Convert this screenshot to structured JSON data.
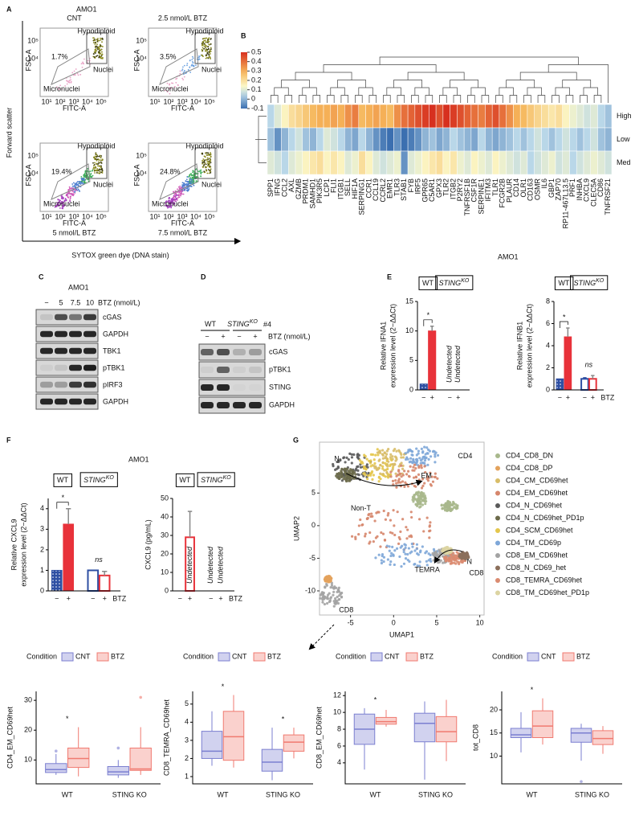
{
  "panel_a": {
    "label": "A",
    "title": "AMO1",
    "y_axis": "Forward scatter",
    "x_axis": "SYTOX green dye (DNA stain)",
    "x_ticks": [
      "10¹",
      "10²",
      "10³",
      "10⁴",
      "10⁵"
    ],
    "y_ticks": [
      "10⁴",
      "10⁵"
    ],
    "x_label": "FITC-A",
    "y_label": "FSC-A",
    "gates": [
      "Hypodiploid",
      "Nuclei",
      "Micronuclei"
    ],
    "plots": [
      {
        "condition": "CNT",
        "percent": "1.7%"
      },
      {
        "condition": "2.5 nmol/L BTZ",
        "percent": "3.5%"
      },
      {
        "condition": "5 nmol/L BTZ",
        "percent": "19.4%"
      },
      {
        "condition": "7.5 nmol/L BTZ",
        "percent": "24.8%"
      }
    ]
  },
  "panel_b": {
    "label": "B"
  },
  "panel_c": {
    "label": "C",
    "title": "AMO1",
    "doses": [
      "−",
      "5",
      "7.5",
      "10"
    ],
    "dose_label": "BTZ (nmol/L)",
    "rows": [
      "cGAS",
      "GAPDH",
      "TBK1",
      "pTBK1",
      "pIRF3",
      "GAPDH"
    ]
  },
  "panel_d": {
    "label": "D",
    "groups": [
      {
        "name": "WT"
      },
      {
        "name": "STING",
        "sup": "KO"
      }
    ],
    "clone": "#4",
    "treatment": [
      "−",
      "+",
      "−",
      "+"
    ],
    "treatment_label": "BTZ (nmol/L)",
    "rows": [
      "cGAS",
      "pTBK1",
      "STING",
      "GAPDH"
    ]
  },
  "panel_e": {
    "label": "E",
    "title": "AMO1"
  },
  "panel_f": {
    "label": "F",
    "title": "AMO1"
  },
  "panel_g": {
    "label": "G"
  },
  "chart_data": [
    {
      "type": "heatmap",
      "rows": [
        "High",
        "Low",
        "Med"
      ],
      "zlim": [
        -0.1,
        0.5
      ],
      "zticks": [
        0.5,
        0.4,
        0.3,
        0.2,
        0.1,
        0,
        -0.1
      ],
      "columns": [
        "SPP1",
        "IFNG",
        "CCL2",
        "AXL",
        "GZMB",
        "PRDM1",
        "SAMHD1",
        "PIK3R5",
        "LCP1",
        "FLI1",
        "ITGB1",
        "SELL",
        "HIF1A",
        "SERPING1",
        "CCR1",
        "CCL19",
        "CCRL2",
        "EMR1",
        "TLR3",
        "STAB1",
        "FYB",
        "IRF5",
        "GPR65",
        "C5AR1",
        "GPX3",
        "TLR2",
        "ITGB2",
        "P2RY2",
        "TNFRSF1B",
        "CSF1R",
        "SERPINE1",
        "IFITM3",
        "TLR1",
        "FCGR2B",
        "PLAUR",
        "CD14",
        "OLR1",
        "CD163",
        "OSMR",
        "IL6",
        "GBP1",
        "ZAP70",
        "RP11-467L13.5",
        "PRF1",
        "INHBA",
        "CXCL9",
        "CLEC5A",
        "CD86",
        "TNFRSF21"
      ],
      "values": [
        [
          0.05,
          0.1,
          0.15,
          0.2,
          0.22,
          0.25,
          0.28,
          0.3,
          0.3,
          0.32,
          0.3,
          0.35,
          0.38,
          0.28,
          0.3,
          0.32,
          0.3,
          0.28,
          0.35,
          0.4,
          0.42,
          0.45,
          0.48,
          0.5,
          0.45,
          0.5,
          0.48,
          0.45,
          0.42,
          0.4,
          0.38,
          0.42,
          0.45,
          0.4,
          0.35,
          0.3,
          0.28,
          0.25,
          0.22,
          0.2,
          0.18,
          0.2,
          0.15,
          0.12,
          0.1,
          0.08,
          0.1,
          0.05,
          0.02
        ],
        [
          0.02,
          -0.05,
          0,
          0.05,
          0.08,
          0.02,
          0,
          0.05,
          0.1,
          0.08,
          0.05,
          0,
          -0.02,
          0.05,
          0,
          -0.05,
          -0.08,
          -0.1,
          -0.05,
          -0.1,
          -0.08,
          -0.05,
          0,
          0.02,
          -0.02,
          0,
          0.05,
          0.02,
          0,
          -0.02,
          0.05,
          0,
          -0.02,
          0,
          0.02,
          0.05,
          0.02,
          0.05,
          0.08,
          0.05,
          0.02,
          0.05,
          0.08,
          0.05,
          0.02,
          0.05,
          0.08,
          0.02,
          0
        ],
        [
          0.1,
          0.08,
          0.05,
          0.1,
          0.12,
          0.15,
          0.18,
          0.2,
          0.15,
          0.18,
          0.15,
          0.1,
          0.12,
          0.2,
          0.15,
          0.1,
          0.08,
          0.1,
          0.12,
          -0.05,
          0.1,
          0.12,
          0.15,
          0.18,
          0.2,
          0.15,
          0.18,
          0.12,
          0.1,
          0.15,
          0.12,
          0.1,
          0.15,
          0.12,
          0.1,
          0.08,
          0.1,
          0.05,
          0.08,
          0.1,
          0.12,
          0.08,
          0.1,
          0.05,
          0.08,
          0.1,
          0.12,
          0.1,
          0.08
        ]
      ]
    },
    {
      "type": "bar",
      "y_label": [
        "Relative IFNA1",
        "expression level (2−ΔΔCt)"
      ],
      "ylim": [
        0,
        15
      ],
      "yticks": [
        0,
        5,
        10,
        15
      ],
      "groups": [
        {
          "name": "WT"
        },
        {
          "name": "STING",
          "sup": "KO"
        }
      ],
      "categories": [
        "−",
        "+",
        "−",
        "+"
      ],
      "values": [
        1,
        10,
        null,
        null
      ],
      "errors": [
        null,
        0.8,
        null,
        null
      ],
      "annotations": [
        null,
        null,
        "Undetected",
        "Undetected"
      ],
      "colors": [
        "#2e4fa3",
        "#e8323a",
        "#2e4fa3",
        "#e8323a"
      ],
      "fills": [
        "dots",
        "solid",
        "none",
        "none"
      ],
      "significance": [
        "*",
        null
      ]
    },
    {
      "type": "bar",
      "y_label": [
        "Relative IFNB1",
        "expression level (2−ΔΔCt)"
      ],
      "ylim": [
        0,
        8
      ],
      "yticks": [
        0,
        2,
        4,
        6,
        8
      ],
      "groups": [
        {
          "name": "WT"
        },
        {
          "name": "STING",
          "sup": "KO"
        }
      ],
      "categories": [
        "−",
        "+",
        "−",
        "+"
      ],
      "x_label": "BTZ",
      "values": [
        1,
        4.8,
        1,
        1
      ],
      "errors": [
        null,
        0.8,
        0.1,
        0.3
      ],
      "colors": [
        "#2e4fa3",
        "#e8323a",
        "#2e4fa3",
        "#e8323a"
      ],
      "fills": [
        "dots",
        "solid",
        "none",
        "none"
      ],
      "significance": [
        "*",
        "ns"
      ]
    },
    {
      "type": "bar",
      "y_label": [
        "Relative CXCL9",
        "expression level (2−ΔΔCt)"
      ],
      "ylim": [
        0,
        4.5
      ],
      "yticks": [
        0,
        1,
        2,
        3,
        4
      ],
      "groups": [
        {
          "name": "WT"
        },
        {
          "name": "STING",
          "sup": "KO"
        }
      ],
      "categories": [
        "−",
        "+",
        "−",
        "+"
      ],
      "x_label": "BTZ",
      "values": [
        1,
        3.25,
        1,
        0.75
      ],
      "errors": [
        null,
        0.75,
        null,
        0.2
      ],
      "colors": [
        "#2e4fa3",
        "#e8323a",
        "#2e4fa3",
        "#e8323a"
      ],
      "fills": [
        "dots",
        "solid",
        "none",
        "none"
      ],
      "significance": [
        "*",
        "ns"
      ]
    },
    {
      "type": "bar",
      "y_label": [
        "CXCL9 (pg/mL)"
      ],
      "ylim": [
        0,
        50
      ],
      "yticks": [
        0,
        10,
        20,
        30,
        40,
        50
      ],
      "groups": [
        {
          "name": "WT"
        },
        {
          "name": "STING",
          "sup": "KO"
        }
      ],
      "categories": [
        "−",
        "+",
        "−",
        "+"
      ],
      "x_label": "BTZ",
      "values": [
        null,
        29,
        null,
        null
      ],
      "errors": [
        null,
        14,
        null,
        null
      ],
      "annotations": [
        null,
        "Undetected",
        "Undetected",
        "Undetected"
      ],
      "colors": [
        "#2e4fa3",
        "#e8323a",
        "#2e4fa3",
        "#e8323a"
      ],
      "fills": [
        "none",
        "none",
        "none",
        "none"
      ]
    },
    {
      "type": "umap",
      "x_label": "UMAP1",
      "y_label": "UMAP2",
      "xlim": [
        -8.6,
        10.5
      ],
      "ylim": [
        -13.7,
        12.8
      ],
      "xticks": [
        -5,
        0,
        5,
        10
      ],
      "yticks": [
        -10,
        -5,
        0,
        5
      ],
      "cluster_labels": [
        "N",
        "EM",
        "CD4",
        "Non-T",
        "TEMRA",
        "N",
        "CD8",
        "CD8"
      ],
      "series": [
        {
          "name": "CD4_CD8_DN",
          "color": "#a8b88c"
        },
        {
          "name": "CD4_CD8_DP",
          "color": "#e3a25c"
        },
        {
          "name": "CD4_CM_CD69het",
          "color": "#d8bd68"
        },
        {
          "name": "CD4_EM_CD69het",
          "color": "#d6866c"
        },
        {
          "name": "CD4_N_CD69het",
          "color": "#5a5a5a"
        },
        {
          "name": "CD4_N_CD69het_PD1p",
          "color": "#6c6a4a"
        },
        {
          "name": "CD4_SCM_CD69het",
          "color": "#e4c64c"
        },
        {
          "name": "CD4_TM_CD69p",
          "color": "#7ea7d8"
        },
        {
          "name": "CD8_EM_CD69het",
          "color": "#a3a3a3"
        },
        {
          "name": "CD8_N_CD69_het",
          "color": "#8b6f5b"
        },
        {
          "name": "CD8_TEMRA_CD69het",
          "color": "#da8b70"
        },
        {
          "name": "CD8_TM_CD69het_PD1p",
          "color": "#dcd4a2"
        }
      ]
    },
    {
      "type": "box",
      "y_label": "CD4_EM_CD69het",
      "ylim": [
        2,
        33
      ],
      "yticks": [
        10,
        20,
        30
      ],
      "legend_title": "Condition",
      "categories": [
        "WT",
        "STING KO"
      ],
      "significance": [
        "*",
        null
      ],
      "series": [
        {
          "name": "CNT",
          "color": "#7b7fd0",
          "boxes": [
            {
              "min": 5,
              "q1": 5.8,
              "median": 6.8,
              "q3": 8.8,
              "max": 12,
              "outliers": [
                13
              ]
            },
            {
              "min": 4,
              "q1": 5,
              "median": 6,
              "q3": 7.8,
              "max": 10,
              "outliers": [
                14
              ]
            }
          ]
        },
        {
          "name": "BTZ",
          "color": "#f07a70",
          "boxes": [
            {
              "min": 4.5,
              "q1": 7.5,
              "median": 10.5,
              "q3": 14,
              "max": 21
            },
            {
              "min": 5,
              "q1": 6.5,
              "median": 7,
              "q3": 14,
              "max": 21,
              "outliers": [
                31
              ]
            }
          ]
        }
      ]
    },
    {
      "type": "box",
      "y_label": "CD8_TEMRA_CD69het",
      "ylim": [
        0.6,
        5.7
      ],
      "yticks": [
        1,
        2,
        3,
        4,
        5
      ],
      "legend_title": "Condition",
      "categories": [
        "WT",
        "STING KO"
      ],
      "significance": [
        "*",
        "*"
      ],
      "series": [
        {
          "name": "CNT",
          "color": "#7b7fd0",
          "boxes": [
            {
              "min": 1.6,
              "q1": 2,
              "median": 2.4,
              "q3": 3.5,
              "max": 4.6
            },
            {
              "min": 0.8,
              "q1": 1.3,
              "median": 1.8,
              "q3": 2.5,
              "max": 3.7
            }
          ]
        },
        {
          "name": "BTZ",
          "color": "#f07a70",
          "boxes": [
            {
              "min": 1.5,
              "q1": 1.9,
              "median": 3.2,
              "q3": 4.6,
              "max": 5.5
            },
            {
              "min": 2,
              "q1": 2.4,
              "median": 2.9,
              "q3": 3.3,
              "max": 3.7
            }
          ]
        }
      ]
    },
    {
      "type": "box",
      "y_label": "CD8_EM_CD69het",
      "ylim": [
        1.5,
        12.5
      ],
      "yticks": [
        4,
        6,
        8,
        10,
        12
      ],
      "legend_title": "Condition",
      "categories": [
        "WT",
        "STING KO"
      ],
      "significance": [
        "*",
        null
      ],
      "series": [
        {
          "name": "CNT",
          "color": "#7b7fd0",
          "boxes": [
            {
              "min": 3.2,
              "q1": 6.2,
              "median": 8,
              "q3": 9.8,
              "max": 10.5
            },
            {
              "min": 2,
              "q1": 6.5,
              "median": 8.7,
              "q3": 9.9,
              "max": 11.3
            }
          ]
        },
        {
          "name": "BTZ",
          "color": "#f07a70",
          "boxes": [
            {
              "min": 8.3,
              "q1": 8.6,
              "median": 8.9,
              "q3": 9.4,
              "max": 10.3
            },
            {
              "min": 4.2,
              "q1": 6.5,
              "median": 7.7,
              "q3": 9.5,
              "max": 11.5
            }
          ]
        }
      ]
    },
    {
      "type": "box",
      "y_label": "tot_CD8",
      "ylim": [
        4,
        24
      ],
      "yticks": [
        10,
        15,
        20
      ],
      "legend_title": "Condition",
      "categories": [
        "WT",
        "STING KO"
      ],
      "significance": [
        "*",
        null
      ],
      "series": [
        {
          "name": "CNT",
          "color": "#7b7fd0",
          "boxes": [
            {
              "min": 10.8,
              "q1": 14,
              "median": 14.6,
              "q3": 16,
              "max": 19.5
            },
            {
              "min": 9,
              "q1": 13,
              "median": 15,
              "q3": 16,
              "max": 17,
              "outliers": [
                4.5
              ]
            }
          ]
        },
        {
          "name": "BTZ",
          "color": "#f07a70",
          "boxes": [
            {
              "min": 12.5,
              "q1": 14,
              "median": 16.5,
              "q3": 19.8,
              "max": 22.5
            },
            {
              "min": 10.5,
              "q1": 12.5,
              "median": 13.8,
              "q3": 15.5,
              "max": 16.5
            }
          ]
        }
      ]
    }
  ]
}
